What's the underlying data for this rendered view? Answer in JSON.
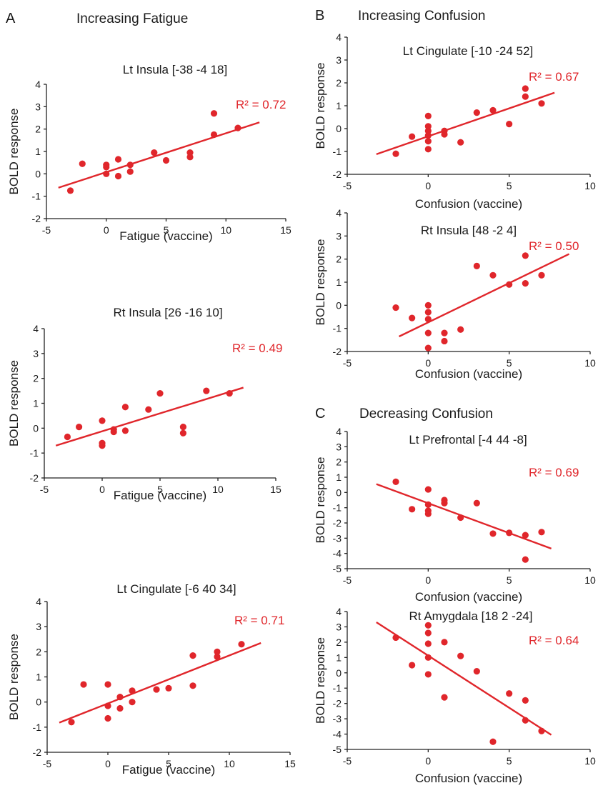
{
  "accent_color": "#e0262b",
  "panels": [
    {
      "letter": "A",
      "title": "Increasing Fatigue"
    },
    {
      "letter": "B",
      "title": "Increasing Confusion"
    },
    {
      "letter": "C",
      "title": "Decreasing Confusion"
    }
  ],
  "chart_data": [
    {
      "type": "scatter",
      "panel": "A",
      "title": "Lt Insula [-38 -4 18]",
      "xlabel": "Fatigue (vaccine)",
      "ylabel": "BOLD response",
      "xlim": [
        -5,
        15
      ],
      "ylim": [
        -2,
        4
      ],
      "xticks": [
        "-5",
        "0",
        "5",
        "10",
        "15"
      ],
      "yticks": [
        "-2",
        "-1",
        "0",
        "1",
        "2",
        "3",
        "4"
      ],
      "points": [
        [
          -3,
          -0.75
        ],
        [
          -2,
          0.45
        ],
        [
          0,
          0.0
        ],
        [
          0,
          0.3
        ],
        [
          0,
          0.4
        ],
        [
          1,
          0.65
        ],
        [
          1,
          -0.1
        ],
        [
          2,
          0.4
        ],
        [
          2,
          0.1
        ],
        [
          4,
          0.95
        ],
        [
          5,
          0.6
        ],
        [
          7,
          0.95
        ],
        [
          7,
          0.75
        ],
        [
          9,
          2.7
        ],
        [
          9,
          1.75
        ],
        [
          11,
          2.05
        ]
      ],
      "fit": {
        "x": [
          -4,
          12.8
        ],
        "y": [
          -0.62,
          2.3
        ]
      },
      "r2": "R² = 0.72",
      "grid": false
    },
    {
      "type": "scatter",
      "panel": "A",
      "title": "Rt Insula [26 -16 10]",
      "xlabel": "Fatigue (vaccine)",
      "ylabel": "BOLD response",
      "xlim": [
        -5,
        15
      ],
      "ylim": [
        -2,
        4
      ],
      "xticks": [
        "-5",
        "0",
        "5",
        "10",
        "15"
      ],
      "yticks": [
        "-2",
        "-1",
        "0",
        "1",
        "2",
        "3",
        "4"
      ],
      "points": [
        [
          -3,
          -0.35
        ],
        [
          -2,
          0.05
        ],
        [
          0,
          0.3
        ],
        [
          0,
          -0.6
        ],
        [
          0,
          -0.7
        ],
        [
          1,
          -0.05
        ],
        [
          1,
          -0.15
        ],
        [
          2,
          0.85
        ],
        [
          2,
          -0.1
        ],
        [
          4,
          0.75
        ],
        [
          5,
          1.4
        ],
        [
          7,
          0.05
        ],
        [
          7,
          -0.2
        ],
        [
          9,
          1.5
        ],
        [
          11,
          1.4
        ]
      ],
      "fit": {
        "x": [
          -4,
          12.2
        ],
        "y": [
          -0.7,
          1.63
        ]
      },
      "r2": "R² = 0.49",
      "grid": false
    },
    {
      "type": "scatter",
      "panel": "A",
      "title": "Lt Cingulate [-6 40 34]",
      "xlabel": "Fatigue (vaccine)",
      "ylabel": "BOLD response",
      "xlim": [
        -5,
        15
      ],
      "ylim": [
        -2,
        4
      ],
      "xticks": [
        "-5",
        "0",
        "5",
        "10",
        "15"
      ],
      "yticks": [
        "-2",
        "-1",
        "0",
        "1",
        "2",
        "3",
        "4"
      ],
      "points": [
        [
          -3,
          -0.8
        ],
        [
          -2,
          0.7
        ],
        [
          0,
          0.7
        ],
        [
          0,
          -0.15
        ],
        [
          0,
          -0.65
        ],
        [
          1,
          0.2
        ],
        [
          1,
          -0.25
        ],
        [
          2,
          0.45
        ],
        [
          2,
          0.0
        ],
        [
          4,
          0.5
        ],
        [
          5,
          0.55
        ],
        [
          7,
          1.85
        ],
        [
          7,
          0.65
        ],
        [
          9,
          2.0
        ],
        [
          9,
          1.8
        ],
        [
          11,
          2.3
        ]
      ],
      "fit": {
        "x": [
          -4,
          12.6
        ],
        "y": [
          -0.82,
          2.35
        ]
      },
      "r2": "R² = 0.71",
      "grid": false
    },
    {
      "type": "scatter",
      "panel": "B",
      "title": "Lt Cingulate [-10 -24 52]",
      "xlabel": "Confusion (vaccine)",
      "ylabel": "BOLD response",
      "xlim": [
        -5,
        10
      ],
      "ylim": [
        -2,
        4
      ],
      "xticks": [
        "-5",
        "0",
        "5",
        "10"
      ],
      "yticks": [
        "-2",
        "-1",
        "0",
        "1",
        "2",
        "3",
        "4"
      ],
      "points": [
        [
          -2,
          -1.1
        ],
        [
          -1,
          -0.35
        ],
        [
          0,
          0.55
        ],
        [
          0,
          0.1
        ],
        [
          0,
          -0.1
        ],
        [
          0,
          -0.3
        ],
        [
          0,
          -0.55
        ],
        [
          0,
          -0.9
        ],
        [
          1,
          -0.1
        ],
        [
          1,
          -0.25
        ],
        [
          2,
          -0.6
        ],
        [
          3,
          0.7
        ],
        [
          4,
          0.8
        ],
        [
          5,
          0.2
        ],
        [
          6,
          1.75
        ],
        [
          6,
          1.4
        ],
        [
          7,
          1.1
        ]
      ],
      "fit": {
        "x": [
          -3.2,
          7.8
        ],
        "y": [
          -1.12,
          1.57
        ]
      },
      "r2": "R² = 0.67",
      "grid": false
    },
    {
      "type": "scatter",
      "panel": "B",
      "title": "Rt Insula [48 -2 4]",
      "xlabel": "Confusion (vaccine)",
      "ylabel": "BOLD response",
      "xlim": [
        -5,
        10
      ],
      "ylim": [
        -2,
        4
      ],
      "xticks": [
        "-5",
        "0",
        "5",
        "10"
      ],
      "yticks": [
        "-2",
        "-1",
        "0",
        "1",
        "2",
        "3",
        "4"
      ],
      "points": [
        [
          -2,
          -0.1
        ],
        [
          -1,
          -0.55
        ],
        [
          0,
          0.0
        ],
        [
          0,
          -0.3
        ],
        [
          0,
          -0.6
        ],
        [
          0,
          -1.2
        ],
        [
          0,
          -1.85
        ],
        [
          1,
          -1.2
        ],
        [
          1,
          -1.55
        ],
        [
          2,
          -1.05
        ],
        [
          3,
          1.7
        ],
        [
          4,
          1.3
        ],
        [
          5,
          0.9
        ],
        [
          6,
          2.15
        ],
        [
          6,
          0.95
        ],
        [
          7,
          1.3
        ]
      ],
      "fit": {
        "x": [
          -1.8,
          8.7
        ],
        "y": [
          -1.35,
          2.22
        ]
      },
      "r2": "R² = 0.50",
      "grid": false
    },
    {
      "type": "scatter",
      "panel": "C",
      "title": "Lt Prefrontal [-4 44 -8]",
      "xlabel": "Confusion (vaccine)",
      "ylabel": "BOLD response",
      "xlim": [
        -5,
        10
      ],
      "ylim": [
        -5,
        4
      ],
      "xticks": [
        "-5",
        "0",
        "5",
        "10"
      ],
      "yticks": [
        "-5",
        "-4",
        "-3",
        "-2",
        "-1",
        "0",
        "1",
        "2",
        "3",
        "4"
      ],
      "points": [
        [
          -2,
          0.7
        ],
        [
          -1,
          -1.1
        ],
        [
          0,
          0.2
        ],
        [
          0,
          -0.8
        ],
        [
          0,
          -1.2
        ],
        [
          0,
          -1.4
        ],
        [
          1,
          -0.5
        ],
        [
          1,
          -0.7
        ],
        [
          2,
          -1.65
        ],
        [
          3,
          -0.7
        ],
        [
          4,
          -2.7
        ],
        [
          5,
          -2.65
        ],
        [
          6,
          -2.8
        ],
        [
          6,
          -4.4
        ],
        [
          7,
          -2.6
        ]
      ],
      "fit": {
        "x": [
          -3.2,
          7.6
        ],
        "y": [
          0.55,
          -3.68
        ]
      },
      "r2": "R² = 0.69",
      "grid": false
    },
    {
      "type": "scatter",
      "panel": "C",
      "title": "Rt Amygdala [18 2 -24]",
      "xlabel": "Confusion (vaccine)",
      "ylabel": "BOLD response",
      "xlim": [
        -5,
        10
      ],
      "ylim": [
        -5,
        4
      ],
      "xticks": [
        "-5",
        "0",
        "5",
        "10"
      ],
      "yticks": [
        "-5",
        "-4",
        "-3",
        "-2",
        "-1",
        "0",
        "1",
        "2",
        "3",
        "4"
      ],
      "points": [
        [
          -2,
          2.3
        ],
        [
          -1,
          0.5
        ],
        [
          0,
          3.1
        ],
        [
          0,
          2.6
        ],
        [
          0,
          1.9
        ],
        [
          0,
          1.0
        ],
        [
          0,
          -0.1
        ],
        [
          1,
          2.0
        ],
        [
          1,
          -1.6
        ],
        [
          2,
          1.1
        ],
        [
          3,
          0.1
        ],
        [
          4,
          -4.5
        ],
        [
          5,
          -1.35
        ],
        [
          6,
          -1.8
        ],
        [
          6,
          -3.1
        ],
        [
          7,
          -3.8
        ]
      ],
      "fit": {
        "x": [
          -3.2,
          7.6
        ],
        "y": [
          3.3,
          -4.05
        ]
      },
      "r2": "R² = 0.64",
      "grid": false
    }
  ]
}
